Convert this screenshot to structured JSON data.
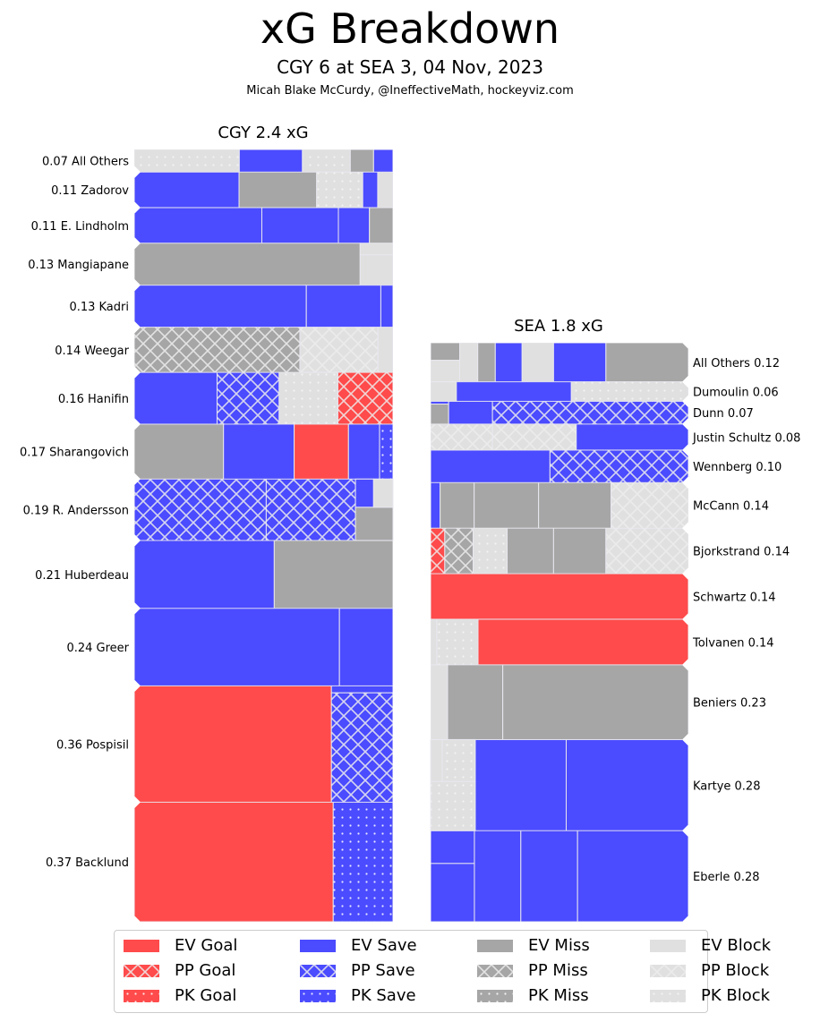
{
  "header": {
    "title": "xG Breakdown",
    "subtitle": "CGY 6 at SEA 3, 04 Nov, 2023",
    "credit": "Micah Blake McCurdy, @IneffectiveMath, hockeyviz.com"
  },
  "colors": {
    "goal": "#ff4b4b",
    "save": "#4b4bff",
    "miss": "#a6a6a6",
    "block": "#e0e0e0",
    "divider": "#e8e8f0"
  },
  "legend": {
    "items": [
      {
        "label": "EV Goal",
        "outcome": "goal",
        "strength": "EV"
      },
      {
        "label": "EV Save",
        "outcome": "save",
        "strength": "EV"
      },
      {
        "label": "EV Miss",
        "outcome": "miss",
        "strength": "EV"
      },
      {
        "label": "EV Block",
        "outcome": "block",
        "strength": "EV"
      },
      {
        "label": "PP Goal",
        "outcome": "goal",
        "strength": "PP"
      },
      {
        "label": "PP Save",
        "outcome": "save",
        "strength": "PP"
      },
      {
        "label": "PP Miss",
        "outcome": "miss",
        "strength": "PP"
      },
      {
        "label": "PP Block",
        "outcome": "block",
        "strength": "PP"
      },
      {
        "label": "PK Goal",
        "outcome": "goal",
        "strength": "PK"
      },
      {
        "label": "PK Save",
        "outcome": "save",
        "strength": "PK"
      },
      {
        "label": "PK Miss",
        "outcome": "miss",
        "strength": "PK"
      },
      {
        "label": "PK Block",
        "outcome": "block",
        "strength": "PK"
      }
    ]
  },
  "chart_data": {
    "type": "treemap-bar",
    "title": "xG Breakdown",
    "subtitle": "CGY 6 at SEA 3, 04 Nov, 2023",
    "teams": [
      {
        "name": "CGY",
        "total_label": "CGY 2.4 xG",
        "total_xg": 2.4,
        "label_side": "left",
        "players": [
          {
            "name": "All Others",
            "xg": 0.07,
            "label": "0.07 All Others",
            "shots": [
              {
                "o": "block",
                "s": "PK",
                "w": 0.406,
                "h": 1
              },
              {
                "o": "save",
                "s": "EV",
                "w": 0.244,
                "h": 1
              },
              {
                "o": "block",
                "s": "PK",
                "w": 0.185,
                "h": 1
              },
              {
                "o": "miss",
                "s": "EV",
                "w": 0.09,
                "h": 1
              },
              {
                "o": "save",
                "s": "EV",
                "w": 0.075,
                "h": 1
              }
            ]
          },
          {
            "name": "Zadorov",
            "xg": 0.11,
            "label": "0.11 Zadorov",
            "shots": [
              {
                "o": "save",
                "s": "EV",
                "w": 0.405,
                "h": 1
              },
              {
                "o": "miss",
                "s": "EV",
                "w": 0.3,
                "h": 1
              },
              {
                "o": "block",
                "s": "PK",
                "w": 0.178,
                "h": 1
              },
              {
                "o": "save",
                "s": "EV",
                "w": 0.058,
                "h": 1
              },
              {
                "o": "block",
                "s": "EV",
                "w": 0.059,
                "h": 1
              }
            ]
          },
          {
            "name": "E. Lindholm",
            "xg": 0.11,
            "label": "0.11 E. Lindholm",
            "shots": [
              {
                "o": "save",
                "s": "EV",
                "w": 0.493,
                "h": 1
              },
              {
                "o": "save",
                "s": "EV",
                "w": 0.296,
                "h": 1
              },
              {
                "o": "save",
                "s": "EV",
                "w": 0.12,
                "h": 1
              },
              {
                "o": "miss",
                "s": "EV",
                "w": 0.091,
                "h": 1
              }
            ]
          },
          {
            "name": "Mangiapane",
            "xg": 0.13,
            "label": "0.13 Mangiapane",
            "shots": [
              {
                "o": "miss",
                "s": "EV",
                "w": 0.873,
                "h": 1
              },
              {
                "o": "block",
                "s": "EV",
                "w": 0.127,
                "h": 0.28,
                "stack": true
              },
              {
                "o": "block",
                "s": "EV",
                "w": 0.127,
                "h": 0.72,
                "stack": true
              }
            ]
          },
          {
            "name": "Kadri",
            "xg": 0.13,
            "label": "0.13 Kadri",
            "shots": [
              {
                "o": "save",
                "s": "EV",
                "w": 0.665,
                "h": 1
              },
              {
                "o": "save",
                "s": "EV",
                "w": 0.288,
                "h": 1
              },
              {
                "o": "save",
                "s": "EV",
                "w": 0.047,
                "h": 1
              }
            ]
          },
          {
            "name": "Weegar",
            "xg": 0.14,
            "label": "0.14 Weegar",
            "shots": [
              {
                "o": "miss",
                "s": "PP",
                "w": 0.64,
                "h": 1
              },
              {
                "o": "block",
                "s": "PP",
                "w": 0.302,
                "h": 1
              },
              {
                "o": "block",
                "s": "EV",
                "w": 0.058,
                "h": 1
              }
            ]
          },
          {
            "name": "Hanifin",
            "xg": 0.16,
            "label": "0.16 Hanifin",
            "shots": [
              {
                "o": "save",
                "s": "EV",
                "w": 0.32,
                "h": 1
              },
              {
                "o": "save",
                "s": "PP",
                "w": 0.24,
                "h": 1
              },
              {
                "o": "block",
                "s": "PK",
                "w": 0.227,
                "h": 1
              },
              {
                "o": "goal",
                "s": "PP",
                "w": 0.213,
                "h": 1
              }
            ]
          },
          {
            "name": "Sharangovich",
            "xg": 0.17,
            "label": "0.17 Sharangovich",
            "shots": [
              {
                "o": "miss",
                "s": "EV",
                "w": 0.345,
                "h": 1
              },
              {
                "o": "save",
                "s": "EV",
                "w": 0.273,
                "h": 1
              },
              {
                "o": "goal",
                "s": "EV",
                "w": 0.21,
                "h": 1
              },
              {
                "o": "save",
                "s": "EV",
                "w": 0.12,
                "h": 1
              },
              {
                "o": "save",
                "s": "PK",
                "w": 0.052,
                "h": 1
              }
            ]
          },
          {
            "name": "R. Andersson",
            "xg": 0.19,
            "label": "0.19 R. Andersson",
            "shots": [
              {
                "o": "save",
                "s": "PP",
                "w": 0.51,
                "h": 1
              },
              {
                "o": "save",
                "s": "PP",
                "w": 0.345,
                "h": 1
              },
              {
                "o": "save",
                "s": "EV",
                "w": 0.07,
                "h": 0.46,
                "stack": true
              },
              {
                "o": "block",
                "s": "EV",
                "w": 0.075,
                "h": 0.46,
                "stack": true
              },
              {
                "o": "miss",
                "s": "EV",
                "w": 0.145,
                "h": 0.54,
                "stack": true
              }
            ]
          },
          {
            "name": "Huberdeau",
            "xg": 0.21,
            "label": "0.21 Huberdeau",
            "shots": [
              {
                "o": "save",
                "s": "EV",
                "w": 0.541,
                "h": 1
              },
              {
                "o": "miss",
                "s": "EV",
                "w": 0.459,
                "h": 1
              }
            ]
          },
          {
            "name": "Greer",
            "xg": 0.24,
            "label": "0.24 Greer",
            "shots": [
              {
                "o": "save",
                "s": "EV",
                "w": 0.793,
                "h": 1
              },
              {
                "o": "save",
                "s": "EV",
                "w": 0.207,
                "h": 1
              }
            ]
          },
          {
            "name": "Pospisil",
            "xg": 0.36,
            "label": "0.36 Pospisil",
            "shots": [
              {
                "o": "goal",
                "s": "EV",
                "w": 0.762,
                "h": 1
              },
              {
                "o": "save",
                "s": "EV",
                "w": 0.238,
                "h": 0.06,
                "stack": true
              },
              {
                "o": "save",
                "s": "PP",
                "w": 0.238,
                "h": 0.94,
                "stack": true
              }
            ]
          },
          {
            "name": "Backlund",
            "xg": 0.37,
            "label": "0.37 Backlund",
            "shots": [
              {
                "o": "goal",
                "s": "EV",
                "w": 0.769,
                "h": 1
              },
              {
                "o": "save",
                "s": "PK",
                "w": 0.231,
                "h": 1
              }
            ]
          }
        ]
      },
      {
        "name": "SEA",
        "total_label": "SEA 1.8 xG",
        "total_xg": 1.8,
        "label_side": "right",
        "players": [
          {
            "name": "All Others",
            "xg": 0.12,
            "label": "All Others 0.12",
            "shots": [
              {
                "o": "miss",
                "s": "EV",
                "w": 0.113,
                "h": 0.45,
                "stack": true
              },
              {
                "o": "block",
                "s": "EV",
                "w": 0.113,
                "h": 0.55,
                "stack": true
              },
              {
                "o": "block",
                "s": "EV",
                "w": 0.07,
                "h": 1
              },
              {
                "o": "miss",
                "s": "EV",
                "w": 0.068,
                "h": 1
              },
              {
                "o": "save",
                "s": "EV",
                "w": 0.104,
                "h": 1
              },
              {
                "o": "block",
                "s": "EV",
                "w": 0.122,
                "h": 1
              },
              {
                "o": "save",
                "s": "EV",
                "w": 0.203,
                "h": 1
              },
              {
                "o": "miss",
                "s": "EV",
                "w": 0.32,
                "h": 1
              }
            ]
          },
          {
            "name": "Dumoulin",
            "xg": 0.06,
            "label": "Dumoulin 0.06",
            "shots": [
              {
                "o": "block",
                "s": "EV",
                "w": 0.1,
                "h": 1
              },
              {
                "o": "save",
                "s": "EV",
                "w": 0.446,
                "h": 1
              },
              {
                "o": "block",
                "s": "PK",
                "w": 0.454,
                "h": 1
              }
            ]
          },
          {
            "name": "Dunn",
            "xg": 0.07,
            "label": "Dunn 0.07",
            "shots": [
              {
                "o": "save",
                "s": "EV",
                "w": 0.07,
                "h": 0.12,
                "stack": true
              },
              {
                "o": "miss",
                "s": "EV",
                "w": 0.07,
                "h": 0.88,
                "stack": true
              },
              {
                "o": "save",
                "s": "EV",
                "w": 0.17,
                "h": 1
              },
              {
                "o": "save",
                "s": "PP",
                "w": 0.76,
                "h": 1
              }
            ]
          },
          {
            "name": "Justin Schultz",
            "xg": 0.08,
            "label": "Justin Schultz 0.08",
            "shots": [
              {
                "o": "block",
                "s": "PP",
                "w": 0.24,
                "h": 1
              },
              {
                "o": "block",
                "s": "PP",
                "w": 0.325,
                "h": 1
              },
              {
                "o": "save",
                "s": "EV",
                "w": 0.435,
                "h": 1
              }
            ]
          },
          {
            "name": "Wennberg",
            "xg": 0.1,
            "label": "Wennberg 0.10",
            "shots": [
              {
                "o": "save",
                "s": "EV",
                "w": 0.463,
                "h": 1
              },
              {
                "o": "save",
                "s": "PP",
                "w": 0.537,
                "h": 1
              }
            ]
          },
          {
            "name": "McCann",
            "xg": 0.14,
            "label": "McCann 0.14",
            "shots": [
              {
                "o": "save",
                "s": "EV",
                "w": 0.037,
                "h": 1
              },
              {
                "o": "miss",
                "s": "EV",
                "w": 0.132,
                "h": 1
              },
              {
                "o": "miss",
                "s": "EV",
                "w": 0.25,
                "h": 1
              },
              {
                "o": "miss",
                "s": "EV",
                "w": 0.281,
                "h": 1
              },
              {
                "o": "block",
                "s": "PP",
                "w": 0.3,
                "h": 1
              }
            ]
          },
          {
            "name": "Bjorkstrand",
            "xg": 0.14,
            "label": "Bjorkstrand 0.14",
            "shots": [
              {
                "o": "goal",
                "s": "PP",
                "w": 0.055,
                "h": 1
              },
              {
                "o": "miss",
                "s": "PP",
                "w": 0.11,
                "h": 1
              },
              {
                "o": "block",
                "s": "PK",
                "w": 0.132,
                "h": 1
              },
              {
                "o": "miss",
                "s": "EV",
                "w": 0.18,
                "h": 1
              },
              {
                "o": "miss",
                "s": "EV",
                "w": 0.203,
                "h": 1
              },
              {
                "o": "block",
                "s": "PP",
                "w": 0.32,
                "h": 1
              }
            ]
          },
          {
            "name": "Schwartz",
            "xg": 0.14,
            "label": "Schwartz 0.14",
            "shots": [
              {
                "o": "goal",
                "s": "EV",
                "w": 1.0,
                "h": 1
              }
            ]
          },
          {
            "name": "Tolvanen",
            "xg": 0.14,
            "label": "Tolvanen 0.14",
            "shots": [
              {
                "o": "block",
                "s": "EV",
                "w": 0.024,
                "h": 1
              },
              {
                "o": "block",
                "s": "PK",
                "w": 0.16,
                "h": 1
              },
              {
                "o": "goal",
                "s": "EV",
                "w": 0.816,
                "h": 1
              }
            ]
          },
          {
            "name": "Beniers",
            "xg": 0.23,
            "label": "Beniers 0.23",
            "shots": [
              {
                "o": "block",
                "s": "EV",
                "w": 0.066,
                "h": 1
              },
              {
                "o": "miss",
                "s": "EV",
                "w": 0.214,
                "h": 1
              },
              {
                "o": "miss",
                "s": "EV",
                "w": 0.72,
                "h": 1
              }
            ]
          },
          {
            "name": "Kartye",
            "xg": 0.28,
            "label": "Kartye 0.28",
            "shots": [
              {
                "o": "block",
                "s": "EV",
                "w": 0.045,
                "h": 0.46,
                "stack": true
              },
              {
                "o": "block",
                "s": "PK",
                "w": 0.128,
                "h": 0.46,
                "stack": true
              },
              {
                "o": "block",
                "s": "PK",
                "w": 0.173,
                "h": 0.54,
                "stack": true
              },
              {
                "o": "save",
                "s": "EV",
                "w": 0.353,
                "h": 1
              },
              {
                "o": "save",
                "s": "EV",
                "w": 0.474,
                "h": 1
              }
            ]
          },
          {
            "name": "Eberle",
            "xg": 0.28,
            "label": "Eberle 0.28",
            "shots": [
              {
                "o": "save",
                "s": "EV",
                "w": 0.17,
                "h": 0.36,
                "stack": true
              },
              {
                "o": "save",
                "s": "EV",
                "w": 0.17,
                "h": 0.64,
                "stack": true
              },
              {
                "o": "save",
                "s": "EV",
                "w": 0.18,
                "h": 1
              },
              {
                "o": "save",
                "s": "EV",
                "w": 0.22,
                "h": 1
              },
              {
                "o": "save",
                "s": "EV",
                "w": 0.43,
                "h": 1
              }
            ]
          }
        ]
      }
    ],
    "legend_position": "bottom-center"
  }
}
